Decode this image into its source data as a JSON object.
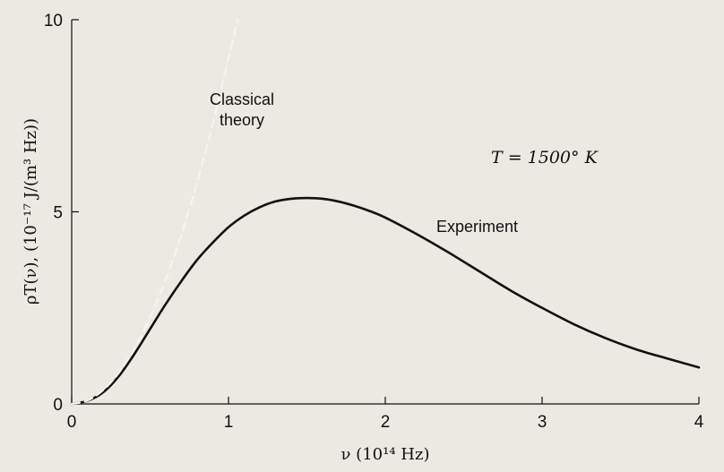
{
  "chart_data": {
    "type": "line",
    "xlabel": "ν (10¹⁴ Hz)",
    "ylabel": "ρT(ν), (10⁻¹⁷ J/(m³ Hz))",
    "xlim": [
      0,
      4
    ],
    "ylim": [
      0,
      10
    ],
    "x_ticks": [
      0,
      1,
      2,
      3,
      4
    ],
    "y_ticks": [
      0,
      5,
      10
    ],
    "x_tick_labels": [
      "0",
      "1",
      "2",
      "3",
      "4"
    ],
    "y_tick_labels": [
      "0",
      "5",
      "10"
    ],
    "grid": false,
    "annotations": {
      "temperature": "T = 1500° K",
      "classical_line1": "Classical",
      "classical_line2": "theory",
      "experiment": "Experiment"
    },
    "series": [
      {
        "name": "Experiment",
        "style": "solid",
        "color": "#111111",
        "x": [
          0,
          0.1,
          0.2,
          0.3,
          0.4,
          0.5,
          0.6,
          0.7,
          0.8,
          0.9,
          1.0,
          1.1,
          1.2,
          1.3,
          1.4,
          1.5,
          1.6,
          1.7,
          1.8,
          1.9,
          2.0,
          2.2,
          2.4,
          2.6,
          2.8,
          3.0,
          3.2,
          3.4,
          3.6,
          3.8,
          4.0
        ],
        "y": [
          0,
          0.08,
          0.3,
          0.72,
          1.3,
          1.95,
          2.6,
          3.2,
          3.75,
          4.2,
          4.6,
          4.9,
          5.12,
          5.27,
          5.34,
          5.36,
          5.34,
          5.27,
          5.16,
          5.02,
          4.85,
          4.42,
          3.95,
          3.45,
          2.95,
          2.5,
          2.08,
          1.72,
          1.42,
          1.18,
          0.95
        ]
      },
      {
        "name": "Classical theory",
        "style": "dashed",
        "color": "#f4f4f0",
        "x": [
          0,
          0.1,
          0.2,
          0.3,
          0.4,
          0.5,
          0.6,
          0.7,
          0.8,
          0.9,
          1.0,
          1.06
        ],
        "y": [
          0,
          0.09,
          0.36,
          0.81,
          1.44,
          2.25,
          3.24,
          4.41,
          5.76,
          7.29,
          9.0,
          10.0
        ]
      }
    ]
  }
}
